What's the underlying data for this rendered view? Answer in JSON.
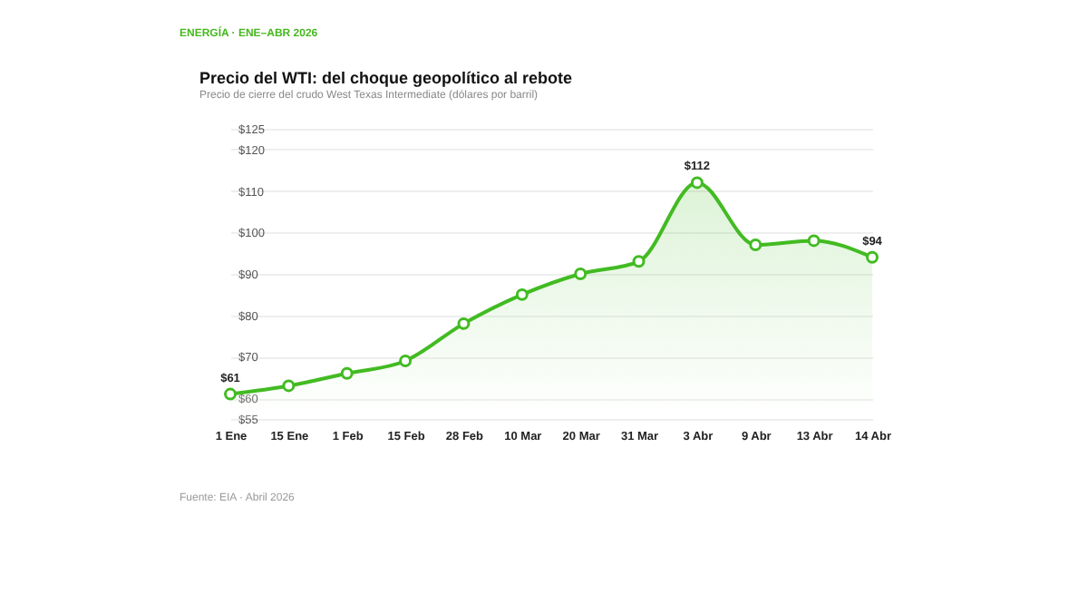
{
  "chart_data": {
    "type": "area",
    "title": "Precio del WTI: del choque geopolítico al rebote",
    "subtitle": "Precio de cierre del crudo West Texas Intermediate (dólares por barril)",
    "annotations": [
      "ENERGÍA · ENE–ABR 2026",
      "Fuente: EIA · Abril 2026"
    ],
    "categories": [
      "1 Ene",
      "15 Ene",
      "1 Feb",
      "15 Feb",
      "28 Feb",
      "10 Mar",
      "20 Mar",
      "31 Mar",
      "3 Abr",
      "9 Abr",
      "13 Abr",
      "14 Abr"
    ],
    "series": [
      {
        "color": "#42bb22",
        "values": [
          61,
          63,
          66,
          69,
          78,
          85,
          90,
          93,
          112,
          97,
          98,
          94
        ],
        "value_labels": [
          "$61",
          null,
          null,
          null,
          null,
          null,
          null,
          null,
          "$112",
          null,
          null,
          "$94"
        ]
      }
    ],
    "ylim": [
      55,
      125
    ],
    "yticks": [
      {
        "value": 55,
        "label": "$55"
      },
      {
        "value": 60,
        "label": "$60"
      },
      {
        "value": 70,
        "label": "$70"
      },
      {
        "value": 80,
        "label": "$80"
      },
      {
        "value": 90,
        "label": "$90"
      },
      {
        "value": 100,
        "label": "$100"
      },
      {
        "value": 110,
        "label": "$110"
      },
      {
        "value": 120,
        "label": "$120"
      },
      {
        "value": 125,
        "label": "$125"
      }
    ],
    "grid": "y",
    "marker": "circle",
    "line_style": "solid"
  }
}
